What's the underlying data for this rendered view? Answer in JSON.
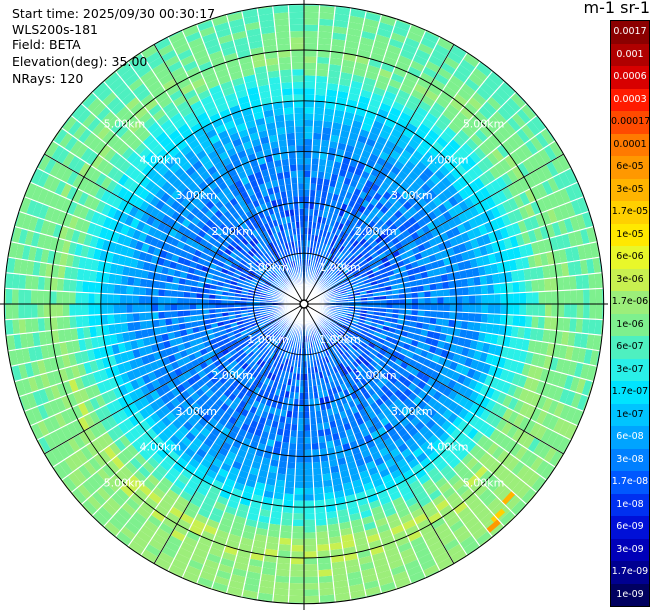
{
  "info": {
    "start_time": "Start time: 2025/09/30 00:30:17",
    "instrument": "WLS200s-181",
    "field": "Field: BETA",
    "elevation": "Elevation(deg): 35.00",
    "nrays": "NRays: 120"
  },
  "colorbar": {
    "title": "m-1 sr-1",
    "levels": [
      "0.0017",
      "0.001",
      "0.0006",
      "0.0003",
      "0.00017",
      "0.0001",
      "6e-05",
      "3e-05",
      "1.7e-05",
      "1e-05",
      "6e-06",
      "3e-06",
      "1.7e-06",
      "1e-06",
      "6e-07",
      "3e-07",
      "1.7e-07",
      "1e-07",
      "6e-08",
      "3e-08",
      "1.7e-08",
      "1e-08",
      "6e-09",
      "3e-09",
      "1.7e-09",
      "1e-09"
    ],
    "colors": [
      "#8b0000",
      "#b00000",
      "#d80000",
      "#ff1a00",
      "#ff4a00",
      "#ff7a00",
      "#ff9800",
      "#ffb400",
      "#ffd000",
      "#ffe800",
      "#e8f72a",
      "#c8f050",
      "#9cee7a",
      "#7ef08e",
      "#4ef0c0",
      "#2af0e8",
      "#00e4ff",
      "#00c4ff",
      "#00a4ff",
      "#0080ff",
      "#0058ff",
      "#0030f0",
      "#0010d8",
      "#0000b8",
      "#000090",
      "#000060"
    ]
  },
  "range_labels": [
    "1.00km",
    "2.00km",
    "3.00km",
    "4.00km",
    "5.00km"
  ],
  "chart_data": {
    "type": "heatmap",
    "projection": "polar PPI",
    "field": "BETA",
    "units": "m-1 sr-1",
    "scale": "log",
    "elevation_deg": 35.0,
    "n_rays": 120,
    "range_rings_km": [
      1,
      2,
      3,
      4,
      5
    ],
    "max_range_km": 5.9,
    "value_range": [
      1e-09,
      0.0017
    ],
    "profile": [
      {
        "range_km": 0.5,
        "value": 3e-08
      },
      {
        "range_km": 1.5,
        "value": 3e-08
      },
      {
        "range_km": 2.5,
        "value": 4e-08
      },
      {
        "range_km": 3.5,
        "value": 8e-08
      },
      {
        "range_km": 4.2,
        "value": 3e-07
      },
      {
        "range_km": 4.8,
        "value": 1.5e-06
      },
      {
        "range_km": 5.4,
        "value": 1e-06
      }
    ]
  }
}
